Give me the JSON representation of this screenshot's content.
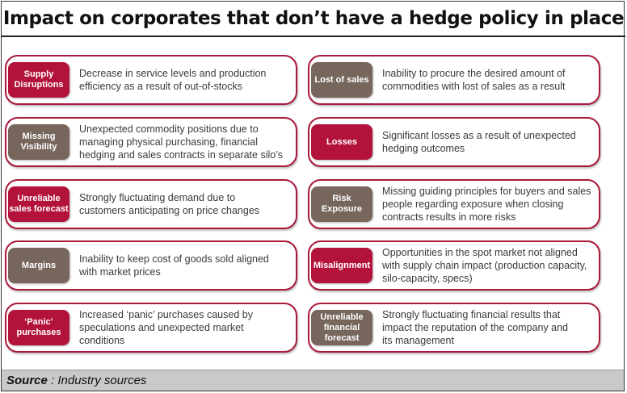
{
  "title": "Impact on corporates that don’t have a hedge policy in place",
  "colors": {
    "red": "#b3133a",
    "brown": "#76665c",
    "border": "#a8183a",
    "source_bg": "#c9c9c9"
  },
  "left_items": [
    {
      "label": "Supply\nDisruptions",
      "color": "red",
      "text": "Decrease in service levels and production\nefficiency as a result of out-of-stocks"
    },
    {
      "label": "Missing\nVisibility",
      "color": "brown",
      "text": "Unexpected commodity positions due to\nmanaging physical purchasing, financial\nhedging and sales contracts in separate silo’s"
    },
    {
      "label": "Unreliable\nsales forecast",
      "color": "red",
      "text": "Strongly fluctuating demand due to\ncustomers anticipating on price changes"
    },
    {
      "label": "Margins",
      "color": "brown",
      "text": "Inability to keep cost of goods sold aligned\nwith market prices"
    },
    {
      "label": "‘Panic’\npurchases",
      "color": "red",
      "text": "Increased ‘panic’ purchases caused by\nspeculations and unexpected market\nconditions"
    }
  ],
  "right_items": [
    {
      "label": "Lost of sales",
      "color": "brown",
      "text": "Inability to procure the desired amount of\ncommodities with lost of sales as a result"
    },
    {
      "label": "Losses",
      "color": "red",
      "text": "Significant losses as a result of unexpected\nhedging outcomes"
    },
    {
      "label": "Risk\nExposure",
      "color": "brown",
      "text": "Missing guiding principles for buyers and sales\npeople regarding exposure when closing\ncontracts results in more risks"
    },
    {
      "label": "Misalignment",
      "color": "red",
      "text": "Opportunities in the spot market not aligned\nwith supply chain impact (production capacity,\nsilo-capacity, specs)"
    },
    {
      "label": "Unreliable\nfinancial\nforecast",
      "color": "brown",
      "text": "Strongly fluctuating financial results that\nimpact the reputation of the company and\nits management"
    }
  ],
  "source": {
    "label": "Source",
    "text": " : Industry sources"
  }
}
